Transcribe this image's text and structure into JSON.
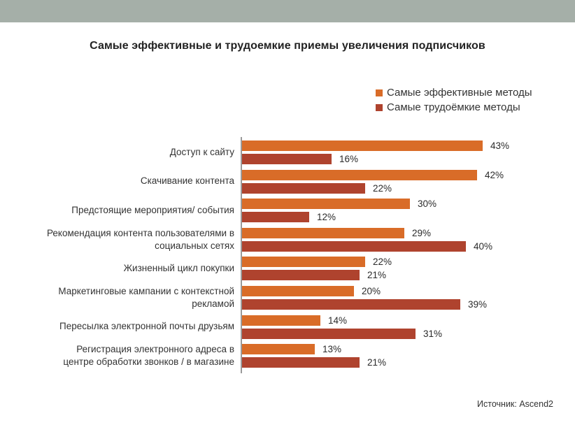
{
  "page": {
    "title": "Самые эффективные и трудоемкие приемы увеличения подписчиков",
    "source": "Источник: Ascend2"
  },
  "legend": {
    "items": [
      {
        "label": "Самые эффективные методы",
        "color": "#D96C28"
      },
      {
        "label": "Самые трудоёмкие методы",
        "color": "#AF432E"
      }
    ]
  },
  "chart_data": {
    "type": "bar",
    "orientation": "horizontal",
    "title": "Самые эффективные и трудоемкие приемы увеличения подписчиков",
    "value_suffix": "%",
    "xlim": [
      0,
      50
    ],
    "grid": false,
    "legend_position": "top-right",
    "categories": [
      [
        "Доступ к сайту"
      ],
      [
        "Скачивание контента"
      ],
      [
        "Предстоящие мероприятия/ события"
      ],
      [
        "Рекомендация контента пользователями в",
        "социальных сетях"
      ],
      [
        "Жизненный цикл покупки"
      ],
      [
        "Маркетинговые кампании с контекстной",
        "рекламой"
      ],
      [
        "Пересылка электронной почты друзьям"
      ],
      [
        "Регистрация электронного адреса в",
        "центре обработки звонков / в магазине"
      ]
    ],
    "series": [
      {
        "name": "Самые эффективные методы",
        "key": "effective",
        "color": "#D96C28",
        "values": [
          43,
          42,
          30,
          29,
          22,
          20,
          14,
          13
        ]
      },
      {
        "name": "Самые трудоёмкие методы",
        "key": "laborious",
        "color": "#AF432E",
        "values": [
          16,
          22,
          12,
          40,
          21,
          39,
          31,
          21
        ]
      }
    ]
  },
  "colors": {
    "band": "#A5AFA8",
    "axis": "#9A9A9A",
    "text": "#333333"
  }
}
